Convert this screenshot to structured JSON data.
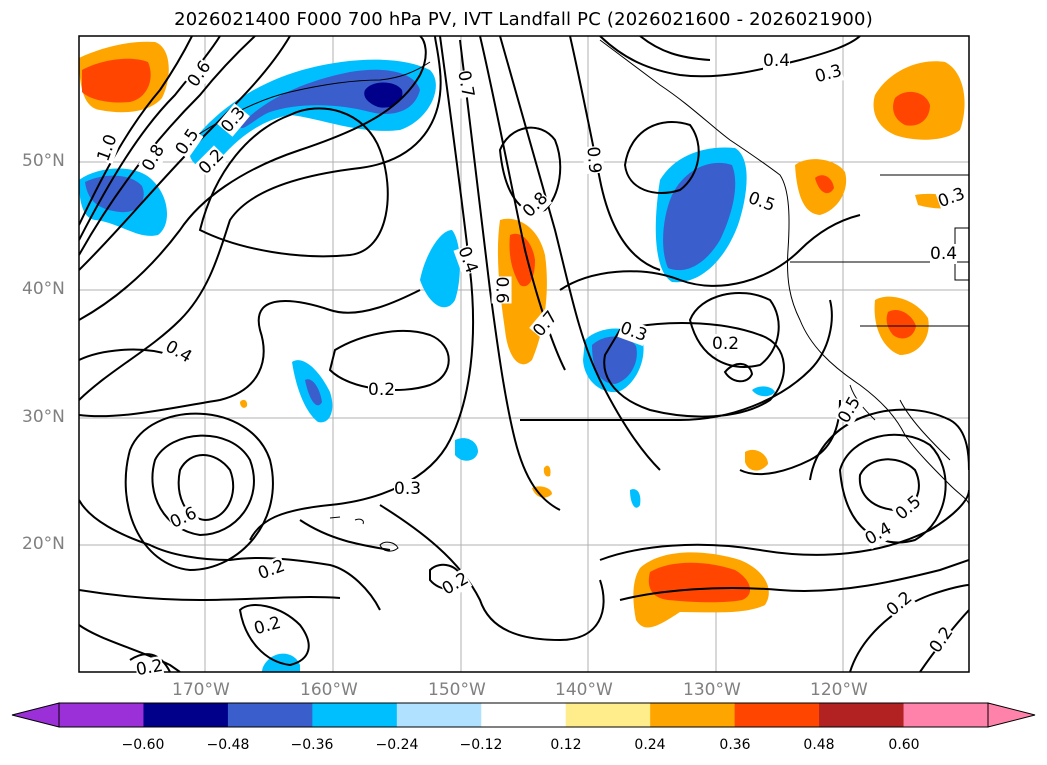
{
  "title": "2026021400 F000 700 hPa PV, IVT Landfall PC (2026021600 - 2026021900)",
  "lat_labels": [
    "50°N",
    "40°N",
    "30°N",
    "20°N"
  ],
  "lon_labels": [
    "170°W",
    "160°W",
    "150°W",
    "140°W",
    "130°W",
    "120°W"
  ],
  "contour_labels": [
    "0.6",
    "0.5",
    "0.3",
    "0.7",
    "0.4",
    "0.3",
    "1.0",
    "0.8",
    "0.2",
    "0.8",
    "0.9",
    "0.5",
    "0.3",
    "0.4",
    "0.6",
    "0.7",
    "0.3",
    "0.2",
    "0.4",
    "0.2",
    "0.5",
    "0.4",
    "0.3",
    "0.6",
    "0.5",
    "0.4",
    "0.2",
    "0.2",
    "0.2",
    "0.2",
    "0.2",
    "0.2"
  ],
  "colorbar": {
    "ticks": [
      "−0.60",
      "−0.48",
      "−0.36",
      "−0.24",
      "−0.12",
      "0.12",
      "0.24",
      "0.36",
      "0.48",
      "0.60"
    ],
    "colors": [
      "#9b30d9",
      "#00008b",
      "#3a5fcd",
      "#00bfff",
      "#b0e2ff",
      "#ffffff",
      "#ffec8b",
      "#ffa500",
      "#ff4500",
      "#b22222",
      "#ff82ab"
    ]
  }
}
